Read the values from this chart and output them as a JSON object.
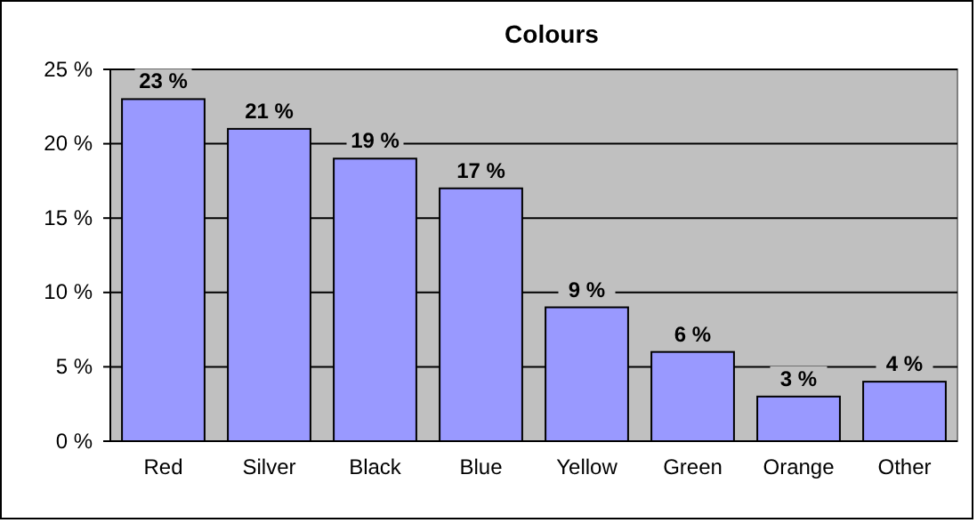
{
  "chart_data": {
    "type": "bar",
    "title": "Colours",
    "categories": [
      "Red",
      "Silver",
      "Black",
      "Blue",
      "Yellow",
      "Green",
      "Orange",
      "Other"
    ],
    "values": [
      23,
      21,
      19,
      17,
      9,
      6,
      3,
      4
    ],
    "value_labels": [
      "23 %",
      "21 %",
      "19 %",
      "17 %",
      "9 %",
      "6 %",
      "3 %",
      "4 %"
    ],
    "color": "#9999ff",
    "ylim": [
      0,
      25
    ],
    "yticks": [
      {
        "value": 0,
        "label": "0 %"
      },
      {
        "value": 5,
        "label": "5 %"
      },
      {
        "value": 10,
        "label": "10 %"
      },
      {
        "value": 15,
        "label": "15 %"
      },
      {
        "value": 20,
        "label": "20 %"
      },
      {
        "value": 25,
        "label": "25 %"
      }
    ],
    "grid": "y"
  }
}
